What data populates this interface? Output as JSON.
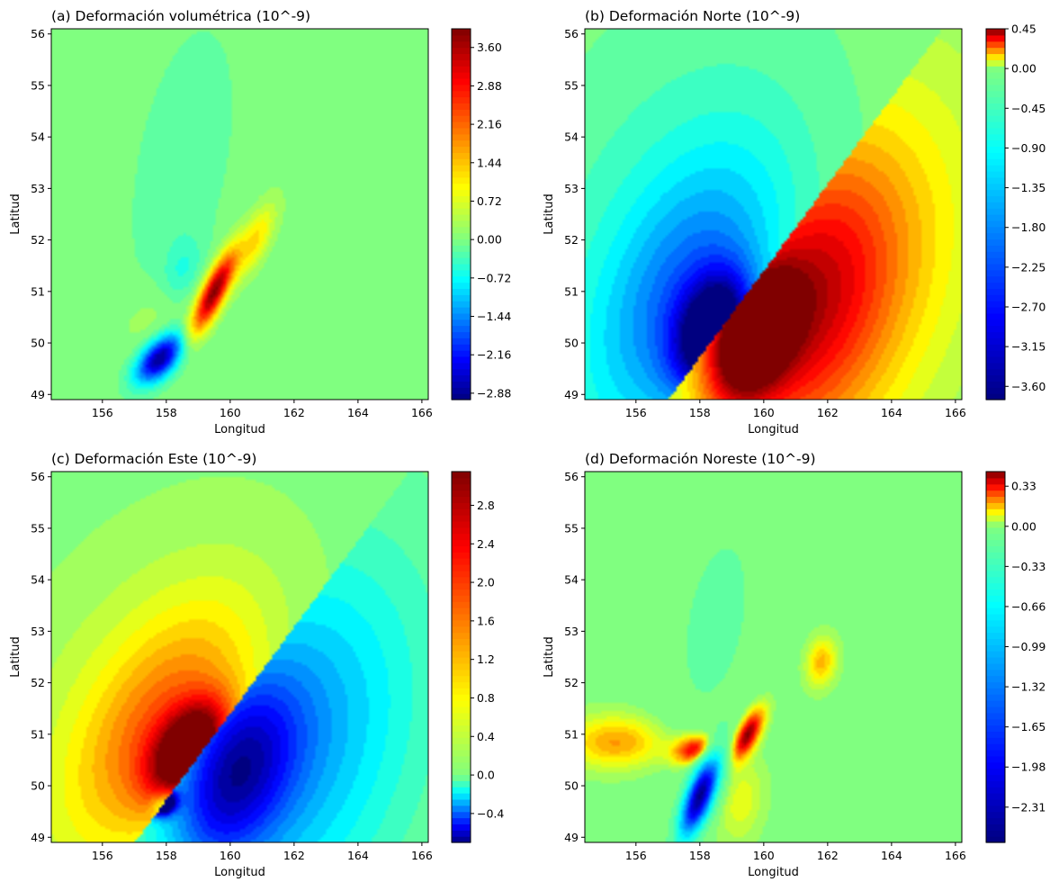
{
  "figure": {
    "colormap": "jet"
  },
  "chart_data": [
    {
      "type": "heatmap",
      "title": "(a) Deformación volumétrica (10^-9)",
      "xlabel": "Longitud",
      "ylabel": "Latitud",
      "xlim": [
        154.4,
        166.2
      ],
      "ylim": [
        48.9,
        56.1
      ],
      "xticks": [
        "156",
        "158",
        "160",
        "162",
        "164",
        "166"
      ],
      "yticks": [
        "49",
        "50",
        "51",
        "52",
        "53",
        "54",
        "55",
        "56"
      ],
      "colorbar": {
        "vmin": -3.0,
        "vmax": 3.95,
        "ticks": [
          -2.88,
          -2.16,
          -1.44,
          -0.72,
          0.0,
          0.72,
          1.44,
          2.16,
          2.88,
          3.6
        ],
        "tick_labels": [
          "−2.88",
          "−2.16",
          "−1.44",
          "−0.72",
          "0.00",
          "0.72",
          "1.44",
          "2.16",
          "2.88",
          "3.60"
        ]
      },
      "features": [
        {
          "lon": 159.5,
          "lat": 51.0,
          "value": 3.9,
          "sx": 0.7,
          "sy": 0.22,
          "angle": 50
        },
        {
          "lon": 160.8,
          "lat": 52.0,
          "value": 1.2,
          "sx": 0.6,
          "sy": 0.25,
          "angle": 50
        },
        {
          "lon": 157.8,
          "lat": 49.7,
          "value": -2.9,
          "sx": 0.55,
          "sy": 0.25,
          "angle": 25
        },
        {
          "lon": 158.5,
          "lat": 51.4,
          "value": -0.45,
          "sx": 0.5,
          "sy": 0.35,
          "angle": 45
        },
        {
          "lon": 158.5,
          "lat": 53.5,
          "value": -0.3,
          "sx": 1.8,
          "sy": 0.9,
          "angle": 70
        },
        {
          "lon": 157.5,
          "lat": 50.5,
          "value": 0.25,
          "sx": 0.8,
          "sy": 0.4,
          "angle": 20
        }
      ]
    },
    {
      "type": "heatmap",
      "title": "(b) Deformación Norte (10^-9)",
      "xlabel": "Longitud",
      "ylabel": "Latitud",
      "xlim": [
        154.4,
        166.2
      ],
      "ylim": [
        48.9,
        56.1
      ],
      "xticks": [
        "156",
        "158",
        "160",
        "162",
        "164",
        "166"
      ],
      "yticks": [
        "49",
        "50",
        "51",
        "52",
        "53",
        "54",
        "55",
        "56"
      ],
      "colorbar": {
        "vmin": -3.75,
        "vmax": 0.45,
        "ticks": [
          -3.6,
          -3.15,
          -2.7,
          -2.25,
          -1.8,
          -1.35,
          -0.9,
          -0.45,
          0.0,
          0.45
        ],
        "tick_labels": [
          "−3.60",
          "−3.15",
          "−2.70",
          "−2.25",
          "−1.80",
          "−1.35",
          "−0.90",
          "−0.45",
          "0.00",
          "0.45"
        ]
      },
      "features": [
        {
          "lon": 159.6,
          "lat": 50.1,
          "value": 0.45,
          "sx": 1.0,
          "sy": 0.7,
          "angle": 40,
          "side": 1
        },
        {
          "lon": 161.2,
          "lat": 50.7,
          "value": 0.3,
          "sx": 2.4,
          "sy": 1.7,
          "angle": 40,
          "side": 1
        },
        {
          "lon": 163.0,
          "lat": 51.5,
          "value": 0.12,
          "sx": 3.6,
          "sy": 2.6,
          "angle": 40,
          "side": 1
        },
        {
          "lon": 158.4,
          "lat": 50.2,
          "value": -3.7,
          "sx": 0.9,
          "sy": 0.65,
          "angle": 40,
          "side": -1
        },
        {
          "lon": 157.6,
          "lat": 50.9,
          "value": -1.6,
          "sx": 2.3,
          "sy": 1.4,
          "angle": 40,
          "side": -1
        },
        {
          "lon": 157.0,
          "lat": 52.0,
          "value": -0.6,
          "sx": 3.6,
          "sy": 2.5,
          "angle": 40,
          "side": -1
        }
      ]
    },
    {
      "type": "heatmap",
      "title": "(c) Deformación Este (10^-9)",
      "xlabel": "Longitud",
      "ylabel": "Latitud",
      "xlim": [
        154.4,
        166.2
      ],
      "ylim": [
        48.9,
        56.1
      ],
      "xticks": [
        "156",
        "158",
        "160",
        "162",
        "164",
        "166"
      ],
      "yticks": [
        "49",
        "50",
        "51",
        "52",
        "53",
        "54",
        "55",
        "56"
      ],
      "colorbar": {
        "vmin": -0.7,
        "vmax": 3.15,
        "ticks": [
          -0.4,
          0.0,
          0.4,
          0.8,
          1.2,
          1.6,
          2.0,
          2.4,
          2.8
        ],
        "tick_labels": [
          "−0.4",
          "0.0",
          "0.4",
          "0.8",
          "1.2",
          "1.6",
          "2.0",
          "2.4",
          "2.8"
        ]
      },
      "features": [
        {
          "lon": 158.7,
          "lat": 50.7,
          "value": 3.1,
          "sx": 0.9,
          "sy": 0.5,
          "angle": 30,
          "side": -1
        },
        {
          "lon": 157.9,
          "lat": 51.1,
          "value": 1.4,
          "sx": 2.2,
          "sy": 1.2,
          "angle": 35,
          "side": -1
        },
        {
          "lon": 157.0,
          "lat": 51.6,
          "value": 0.5,
          "sx": 3.4,
          "sy": 2.0,
          "angle": 30,
          "side": -1
        },
        {
          "lon": 160.1,
          "lat": 50.2,
          "value": -0.45,
          "sx": 1.5,
          "sy": 1.0,
          "angle": 40,
          "side": 1
        },
        {
          "lon": 162.0,
          "lat": 50.8,
          "value": -0.3,
          "sx": 3.0,
          "sy": 2.2,
          "angle": 40,
          "side": 1
        },
        {
          "lon": 157.9,
          "lat": 49.65,
          "value": -0.9,
          "sx": 0.28,
          "sy": 0.15,
          "angle": 10
        }
      ]
    },
    {
      "type": "heatmap",
      "title": "(d) Deformación Noreste (10^-9)",
      "xlabel": "Longitud",
      "ylabel": "Latitud",
      "xlim": [
        154.4,
        166.2
      ],
      "ylim": [
        48.9,
        56.1
      ],
      "xticks": [
        "156",
        "158",
        "160",
        "162",
        "164",
        "166"
      ],
      "yticks": [
        "49",
        "50",
        "51",
        "52",
        "53",
        "54",
        "55",
        "56"
      ],
      "colorbar": {
        "vmin": -2.6,
        "vmax": 0.45,
        "ticks": [
          -2.31,
          -1.98,
          -1.65,
          -1.32,
          -0.99,
          -0.66,
          -0.33,
          0.0,
          0.33
        ],
        "tick_labels": [
          "−2.31",
          "−1.98",
          "−1.65",
          "−1.32",
          "−0.99",
          "−0.66",
          "−0.33",
          "0.00",
          "0.33"
        ]
      },
      "features": [
        {
          "lon": 159.5,
          "lat": 51.0,
          "value": 0.45,
          "sx": 0.45,
          "sy": 0.2,
          "angle": 45
        },
        {
          "lon": 157.9,
          "lat": 50.7,
          "value": 0.4,
          "sx": 0.5,
          "sy": 0.2,
          "angle": 5
        },
        {
          "lon": 155.4,
          "lat": 50.85,
          "value": 0.2,
          "sx": 1.1,
          "sy": 0.35,
          "angle": 0
        },
        {
          "lon": 161.8,
          "lat": 52.4,
          "value": 0.18,
          "sx": 0.35,
          "sy": 0.3,
          "angle": 45
        },
        {
          "lon": 158.0,
          "lat": 49.8,
          "value": -2.55,
          "sx": 0.6,
          "sy": 0.24,
          "angle": 55
        },
        {
          "lon": 159.3,
          "lat": 49.7,
          "value": 0.1,
          "sx": 0.6,
          "sy": 0.45,
          "angle": 60
        },
        {
          "lon": 158.5,
          "lat": 53.2,
          "value": -0.12,
          "sx": 1.8,
          "sy": 1.0,
          "angle": 70
        }
      ]
    }
  ]
}
